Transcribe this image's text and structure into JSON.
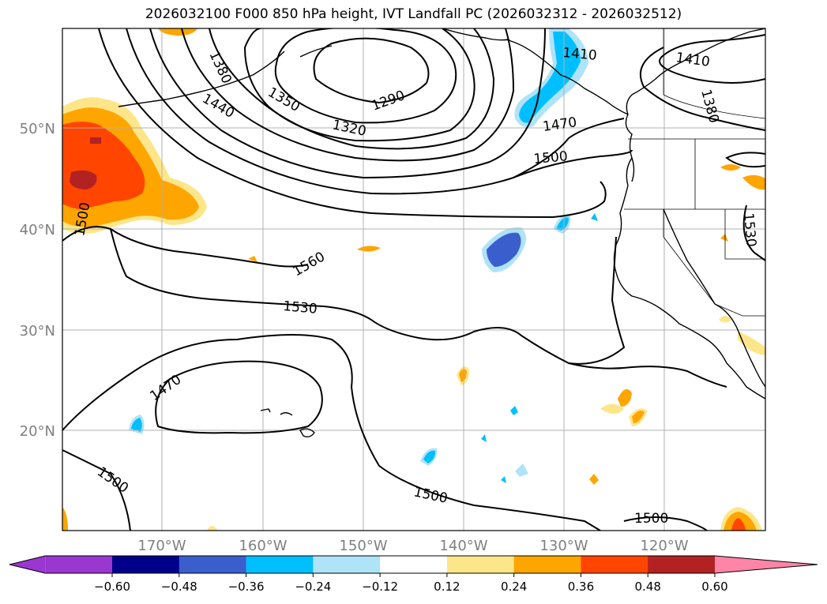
{
  "title": "2026032100 F000 850 hPa height, IVT Landfall PC (2026032312 - 2026032512)",
  "map": {
    "lon_ticks": [
      "170°W",
      "160°W",
      "150°W",
      "140°W",
      "130°W",
      "120°W"
    ],
    "lat_ticks": [
      "50°N",
      "40°N",
      "30°N",
      "20°N"
    ],
    "contour_labels": [
      "1380",
      "1440",
      "1350",
      "1290",
      "1320",
      "1410",
      "1410",
      "1380",
      "1470",
      "1500",
      "1500",
      "1560",
      "1530",
      "1530",
      "1470",
      "1500",
      "1500",
      "1500"
    ],
    "gridline_color": "#b0b0b0"
  },
  "colorbar": {
    "ticks": [
      "−0.60",
      "−0.48",
      "−0.36",
      "−0.24",
      "−0.12",
      "0.12",
      "0.24",
      "0.36",
      "0.48",
      "0.60"
    ],
    "colors": [
      "#9a37d0",
      "#00008b",
      "#3a5fcd",
      "#00bfff",
      "#aee3f8",
      "#ffffff",
      "#fde68a",
      "#ffa500",
      "#ff4500",
      "#b22222",
      "#ff85a8"
    ],
    "levels": [
      -0.72,
      -0.6,
      -0.48,
      -0.36,
      -0.24,
      -0.12,
      0.12,
      0.24,
      0.36,
      0.48,
      0.6,
      0.72
    ]
  }
}
